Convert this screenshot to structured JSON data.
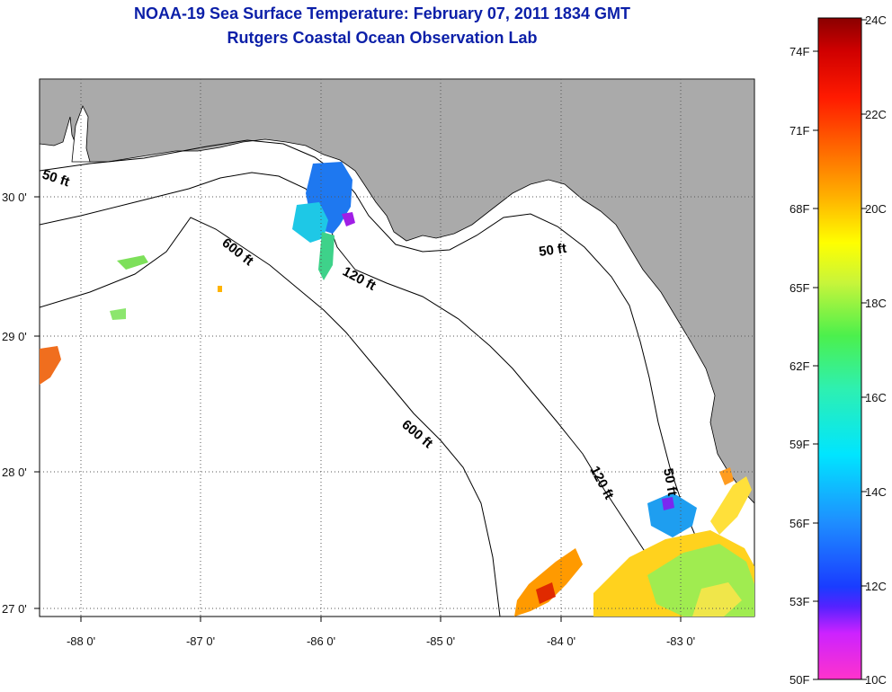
{
  "title": {
    "line1": "NOAA-19 Sea Surface Temperature:  February 07, 2011 1834 GMT",
    "line2": "Rutgers Coastal Ocean Observation Lab"
  },
  "axes": {
    "x_ticks": [
      "-88 0'",
      "-87 0'",
      "-86 0'",
      "-85 0'",
      "-84 0'",
      "-83 0'"
    ],
    "y_ticks": [
      "30 0'",
      "29 0'",
      "28 0'",
      "27 0'"
    ]
  },
  "contours": {
    "labels": [
      "50 ft",
      "600 ft",
      "120 ft",
      "50 ft",
      "600 ft",
      "120 ft",
      "50 ft"
    ]
  },
  "colorbar": {
    "fahrenheit": [
      "74F",
      "71F",
      "68F",
      "65F",
      "62F",
      "59F",
      "56F",
      "53F",
      "50F"
    ],
    "celsius": [
      "24C",
      "22C",
      "20C",
      "18C",
      "16C",
      "14C",
      "12C",
      "10C"
    ]
  },
  "colors": {
    "land": "#aaaaaa",
    "ocean": "#ffffff",
    "title": "#0b1fa8"
  }
}
